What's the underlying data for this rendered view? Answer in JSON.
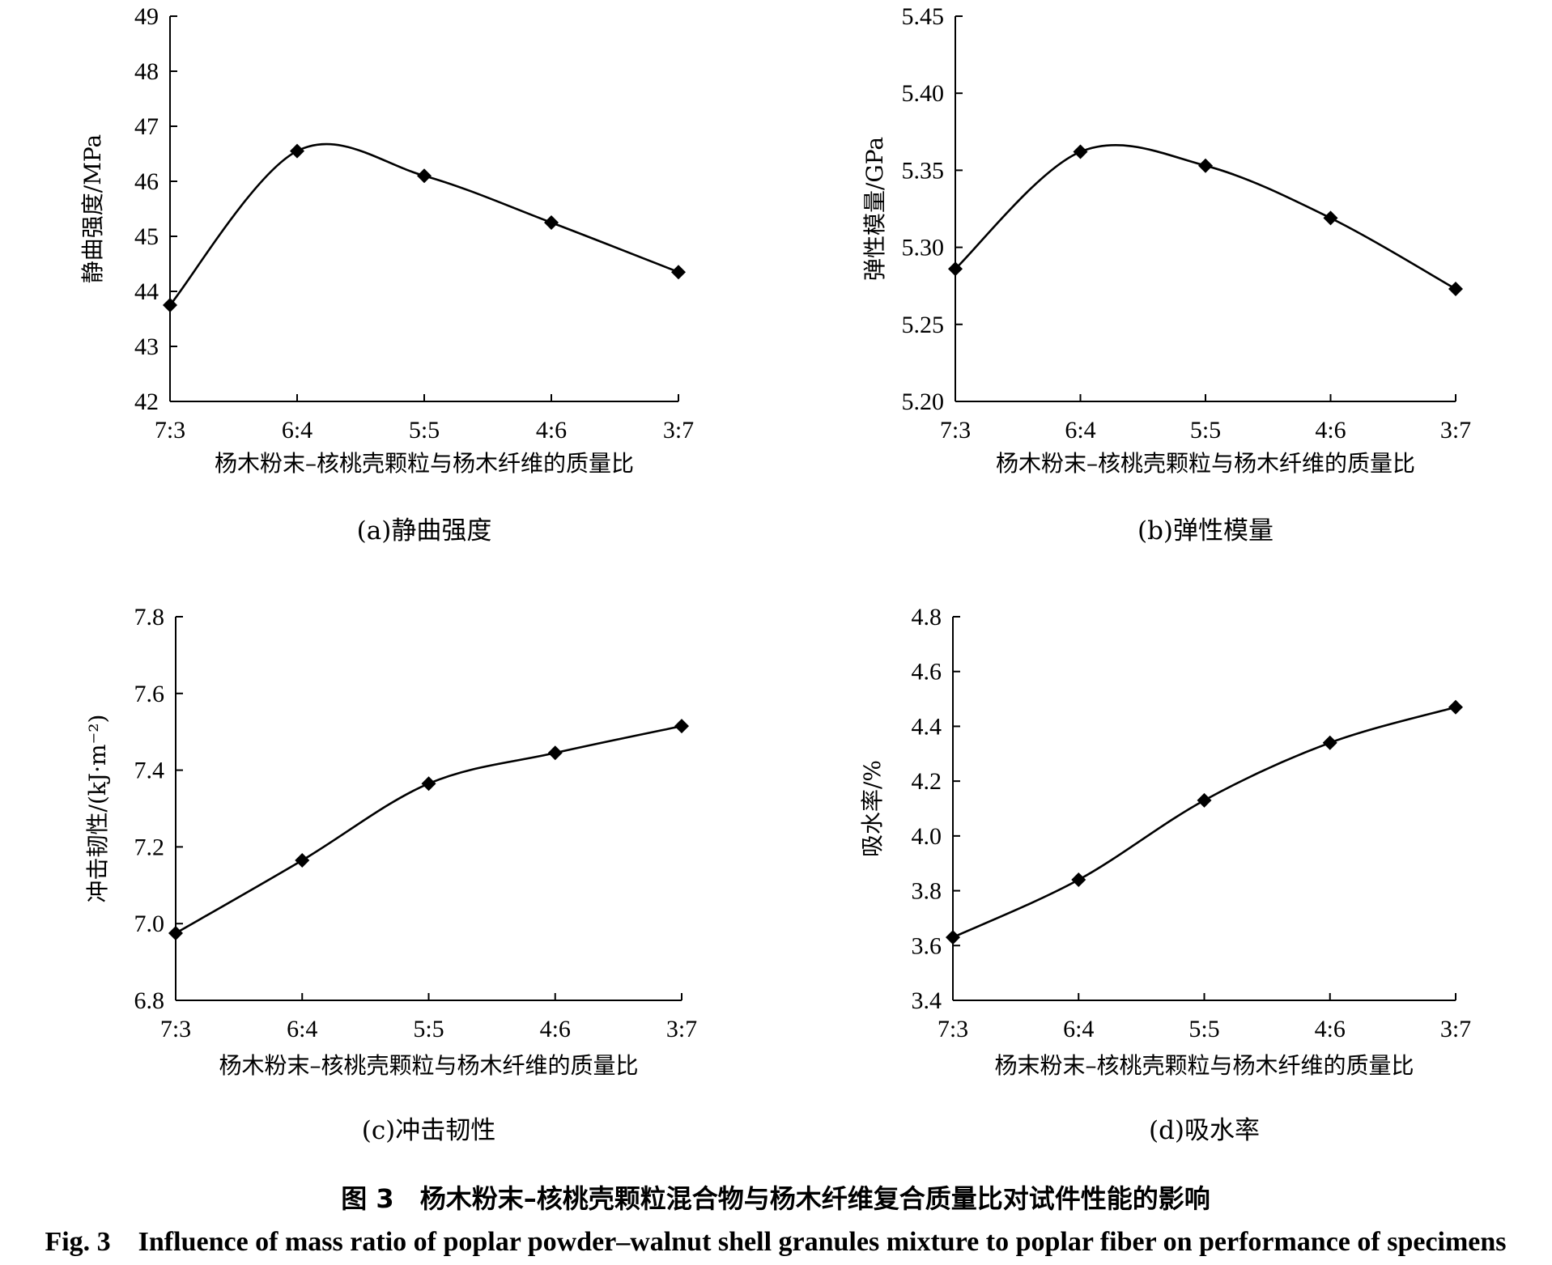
{
  "figure": {
    "title_cn": "图 3　杨木粉末–核桃壳颗粒混合物与杨木纤维复合质量比对试件性能的影响",
    "title_en": "Fig. 3　Influence of mass ratio of poplar powder–walnut shell granules mixture to poplar fiber on performance of specimens"
  },
  "chart_data": [
    {
      "type": "line",
      "caption": "(a)静曲强度",
      "xlabel": "杨木粉末–核桃壳颗粒与杨木纤维的质量比",
      "ylabel": "静曲强度/MPa",
      "categories": [
        "7:3",
        "6:4",
        "5:5",
        "4:6",
        "3:7"
      ],
      "values": [
        43.75,
        46.55,
        46.1,
        45.25,
        44.35
      ],
      "ylim": [
        42,
        49
      ],
      "yticks": [
        "42",
        "43",
        "44",
        "45",
        "46",
        "47",
        "48",
        "49"
      ],
      "smooth": true,
      "marker": "diamond",
      "grid": false
    },
    {
      "type": "line",
      "caption": "(b)弹性模量",
      "xlabel": "杨木粉末–核桃壳颗粒与杨木纤维的质量比",
      "ylabel": "弹性模量/GPa",
      "categories": [
        "7:3",
        "6:4",
        "5:5",
        "4:6",
        "3:7"
      ],
      "values": [
        5.286,
        5.362,
        5.353,
        5.319,
        5.273
      ],
      "ylim": [
        5.2,
        5.45
      ],
      "yticks": [
        "5.20",
        "5.25",
        "5.30",
        "5.35",
        "5.40",
        "5.45"
      ],
      "smooth": true,
      "marker": "diamond",
      "grid": false
    },
    {
      "type": "line",
      "caption": "(c)冲击韧性",
      "xlabel": "杨木粉末–核桃壳颗粒与杨木纤维的质量比",
      "ylabel": "冲击韧性/(kJ·m⁻²)",
      "categories": [
        "7:3",
        "6:4",
        "5:5",
        "4:6",
        "3:7"
      ],
      "values": [
        6.975,
        7.165,
        7.365,
        7.445,
        7.515
      ],
      "ylim": [
        6.8,
        7.8
      ],
      "yticks": [
        "6.8",
        "7.0",
        "7.2",
        "7.4",
        "7.6",
        "7.8"
      ],
      "smooth": true,
      "marker": "diamond",
      "grid": false
    },
    {
      "type": "line",
      "caption": "(d)吸水率",
      "xlabel": "杨末粉末–核桃壳颗粒与杨木纤维的质量比",
      "ylabel": "吸水率/%",
      "categories": [
        "7:3",
        "6:4",
        "5:5",
        "4:6",
        "3:7"
      ],
      "values": [
        3.63,
        3.84,
        4.13,
        4.34,
        4.47
      ],
      "ylim": [
        3.4,
        4.8
      ],
      "yticks": [
        "3.4",
        "3.6",
        "3.8",
        "4.0",
        "4.2",
        "4.4",
        "4.6",
        "4.8"
      ],
      "smooth": true,
      "marker": "diamond",
      "grid": false
    }
  ]
}
